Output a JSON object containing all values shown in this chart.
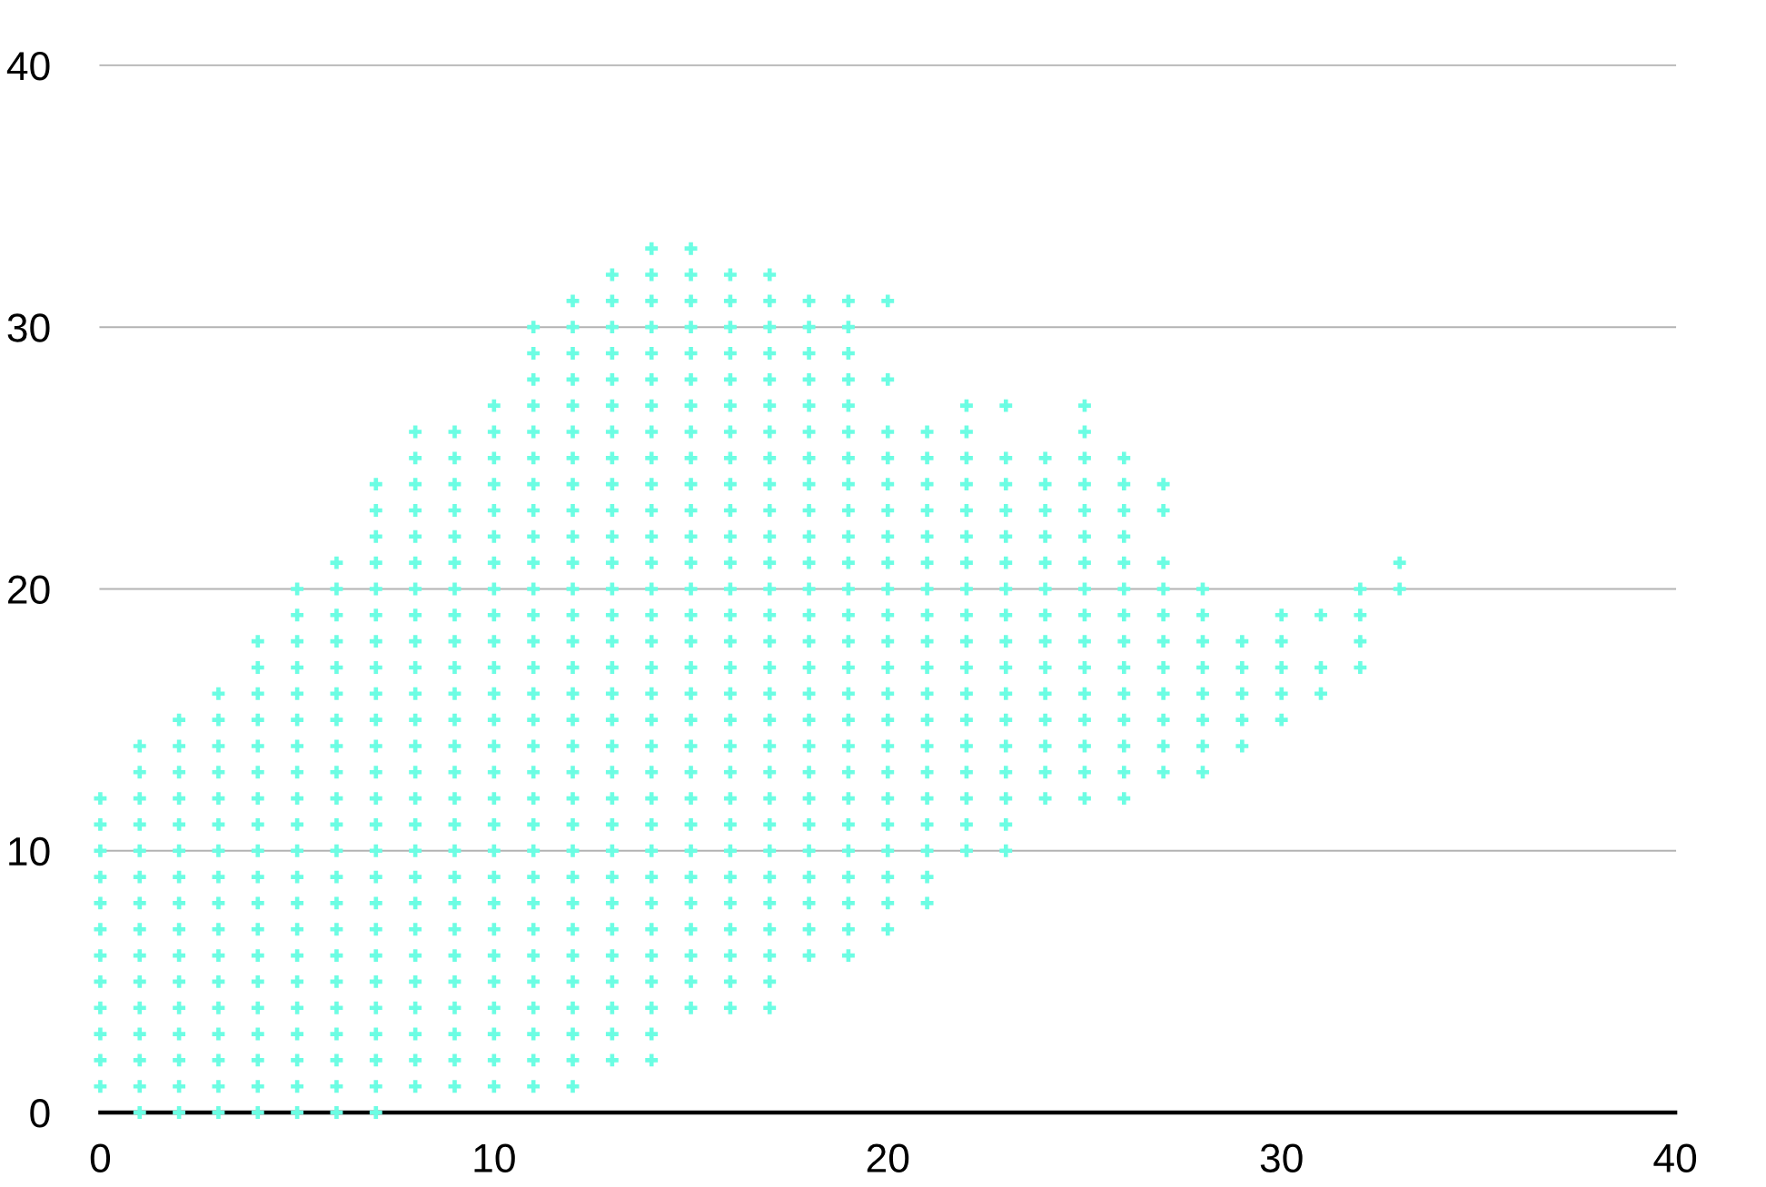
{
  "chart_data": {
    "type": "scatter",
    "color": "#6cfde3",
    "marker": "cross",
    "xlim": [
      0,
      40
    ],
    "ylim": [
      0,
      40
    ],
    "xticks": [
      0,
      10,
      20,
      30,
      40
    ],
    "yticks": [
      0,
      10,
      20,
      30,
      40
    ],
    "grid": "y",
    "x": [
      0,
      0,
      0,
      0,
      0,
      0,
      0,
      0,
      0,
      0,
      0,
      0,
      1,
      1,
      1,
      1,
      1,
      1,
      1,
      1,
      1,
      1,
      1,
      1,
      1,
      1,
      1,
      2,
      2,
      2,
      2,
      2,
      2,
      2,
      2,
      2,
      2,
      2,
      2,
      2,
      2,
      2,
      2,
      3,
      3,
      3,
      3,
      3,
      3,
      3,
      3,
      3,
      3,
      3,
      3,
      3,
      3,
      3,
      3,
      3,
      4,
      4,
      4,
      4,
      4,
      4,
      4,
      4,
      4,
      4,
      4,
      4,
      4,
      4,
      4,
      4,
      4,
      4,
      4,
      5,
      5,
      5,
      5,
      5,
      5,
      5,
      5,
      5,
      5,
      5,
      5,
      5,
      5,
      5,
      5,
      5,
      5,
      5,
      5,
      5,
      6,
      6,
      6,
      6,
      6,
      6,
      6,
      6,
      6,
      6,
      6,
      6,
      6,
      6,
      6,
      6,
      6,
      6,
      6,
      6,
      6,
      6,
      7,
      7,
      7,
      7,
      7,
      7,
      7,
      7,
      7,
      7,
      7,
      7,
      7,
      7,
      7,
      7,
      7,
      7,
      7,
      7,
      7,
      7,
      7,
      7,
      7,
      8,
      8,
      8,
      8,
      8,
      8,
      8,
      8,
      8,
      8,
      8,
      8,
      8,
      8,
      8,
      8,
      8,
      8,
      8,
      8,
      8,
      8,
      8,
      8,
      8,
      8,
      9,
      9,
      9,
      9,
      9,
      9,
      9,
      9,
      9,
      9,
      9,
      9,
      9,
      9,
      9,
      9,
      9,
      9,
      9,
      9,
      9,
      9,
      9,
      9,
      9,
      9,
      10,
      10,
      10,
      10,
      10,
      10,
      10,
      10,
      10,
      10,
      10,
      10,
      10,
      10,
      10,
      10,
      10,
      10,
      10,
      10,
      10,
      10,
      10,
      10,
      10,
      10,
      10,
      11,
      11,
      11,
      11,
      11,
      11,
      11,
      11,
      11,
      11,
      11,
      11,
      11,
      11,
      11,
      11,
      11,
      11,
      11,
      11,
      11,
      11,
      11,
      11,
      11,
      11,
      11,
      11,
      11,
      11,
      12,
      12,
      12,
      12,
      12,
      12,
      12,
      12,
      12,
      12,
      12,
      12,
      12,
      12,
      12,
      12,
      12,
      12,
      12,
      12,
      12,
      12,
      12,
      12,
      12,
      12,
      12,
      12,
      12,
      12,
      12,
      13,
      13,
      13,
      13,
      13,
      13,
      13,
      13,
      13,
      13,
      13,
      13,
      13,
      13,
      13,
      13,
      13,
      13,
      13,
      13,
      13,
      13,
      13,
      13,
      13,
      13,
      13,
      13,
      13,
      13,
      13,
      14,
      14,
      14,
      14,
      14,
      14,
      14,
      14,
      14,
      14,
      14,
      14,
      14,
      14,
      14,
      14,
      14,
      14,
      14,
      14,
      14,
      14,
      14,
      14,
      14,
      14,
      14,
      14,
      14,
      14,
      14,
      14,
      15,
      15,
      15,
      15,
      15,
      15,
      15,
      15,
      15,
      15,
      15,
      15,
      15,
      15,
      15,
      15,
      15,
      15,
      15,
      15,
      15,
      15,
      15,
      15,
      15,
      15,
      15,
      15,
      15,
      15,
      16,
      16,
      16,
      16,
      16,
      16,
      16,
      16,
      16,
      16,
      16,
      16,
      16,
      16,
      16,
      16,
      16,
      16,
      16,
      16,
      16,
      16,
      16,
      16,
      16,
      16,
      16,
      16,
      16,
      17,
      17,
      17,
      17,
      17,
      17,
      17,
      17,
      17,
      17,
      17,
      17,
      17,
      17,
      17,
      17,
      17,
      17,
      17,
      17,
      17,
      17,
      17,
      17,
      17,
      17,
      17,
      17,
      17,
      18,
      18,
      18,
      18,
      18,
      18,
      18,
      18,
      18,
      18,
      18,
      18,
      18,
      18,
      18,
      18,
      18,
      18,
      18,
      18,
      18,
      18,
      18,
      18,
      18,
      18,
      19,
      19,
      19,
      19,
      19,
      19,
      19,
      19,
      19,
      19,
      19,
      19,
      19,
      19,
      19,
      19,
      19,
      19,
      19,
      19,
      19,
      19,
      19,
      19,
      19,
      19,
      20,
      20,
      20,
      20,
      20,
      20,
      20,
      20,
      20,
      20,
      20,
      20,
      20,
      20,
      20,
      20,
      20,
      20,
      20,
      20,
      20,
      20,
      21,
      21,
      21,
      21,
      21,
      21,
      21,
      21,
      21,
      21,
      21,
      21,
      21,
      21,
      21,
      21,
      21,
      21,
      21,
      22,
      22,
      22,
      22,
      22,
      22,
      22,
      22,
      22,
      22,
      22,
      22,
      22,
      22,
      22,
      22,
      22,
      22,
      23,
      23,
      23,
      23,
      23,
      23,
      23,
      23,
      23,
      23,
      23,
      23,
      23,
      23,
      23,
      23,
      23,
      24,
      24,
      24,
      24,
      24,
      24,
      24,
      24,
      24,
      24,
      24,
      24,
      24,
      24,
      25,
      25,
      25,
      25,
      25,
      25,
      25,
      25,
      25,
      25,
      25,
      25,
      25,
      25,
      25,
      25,
      26,
      26,
      26,
      26,
      26,
      26,
      26,
      26,
      26,
      26,
      26,
      26,
      26,
      26,
      27,
      27,
      27,
      27,
      27,
      27,
      27,
      27,
      27,
      27,
      27,
      28,
      28,
      28,
      28,
      28,
      28,
      28,
      28,
      29,
      29,
      29,
      29,
      29,
      30,
      30,
      30,
      30,
      30,
      31,
      31,
      31,
      32,
      32,
      32,
      32,
      33,
      33
    ],
    "values": [
      1,
      2,
      3,
      4,
      5,
      6,
      7,
      8,
      9,
      10,
      11,
      12,
      0,
      1,
      2,
      3,
      4,
      5,
      6,
      7,
      8,
      9,
      10,
      11,
      12,
      13,
      14,
      0,
      1,
      2,
      3,
      4,
      5,
      6,
      7,
      8,
      9,
      10,
      11,
      12,
      13,
      14,
      15,
      0,
      1,
      2,
      3,
      4,
      5,
      6,
      7,
      8,
      9,
      10,
      11,
      12,
      13,
      14,
      15,
      16,
      0,
      1,
      2,
      3,
      4,
      5,
      6,
      7,
      8,
      9,
      10,
      11,
      12,
      13,
      14,
      15,
      16,
      17,
      18,
      0,
      1,
      2,
      3,
      4,
      5,
      6,
      7,
      8,
      9,
      10,
      11,
      12,
      13,
      14,
      15,
      16,
      17,
      18,
      19,
      20,
      0,
      1,
      2,
      3,
      4,
      5,
      6,
      7,
      8,
      9,
      10,
      11,
      12,
      13,
      14,
      15,
      16,
      17,
      18,
      19,
      20,
      21,
      0,
      1,
      2,
      3,
      4,
      5,
      6,
      7,
      8,
      9,
      10,
      11,
      12,
      13,
      14,
      15,
      16,
      17,
      18,
      19,
      20,
      21,
      22,
      23,
      24,
      1,
      2,
      3,
      4,
      5,
      6,
      7,
      8,
      9,
      10,
      11,
      12,
      13,
      14,
      15,
      16,
      17,
      18,
      19,
      20,
      21,
      22,
      23,
      24,
      25,
      26,
      1,
      2,
      3,
      4,
      5,
      6,
      7,
      8,
      9,
      10,
      11,
      12,
      13,
      14,
      15,
      16,
      17,
      18,
      19,
      20,
      21,
      22,
      23,
      24,
      25,
      26,
      1,
      2,
      3,
      4,
      5,
      6,
      7,
      8,
      9,
      10,
      11,
      12,
      13,
      14,
      15,
      16,
      17,
      18,
      19,
      20,
      21,
      22,
      23,
      24,
      25,
      26,
      27,
      1,
      2,
      3,
      4,
      5,
      6,
      7,
      8,
      9,
      10,
      11,
      12,
      13,
      14,
      15,
      16,
      17,
      18,
      19,
      20,
      21,
      22,
      23,
      24,
      25,
      26,
      27,
      28,
      29,
      30,
      1,
      2,
      3,
      4,
      5,
      6,
      7,
      8,
      9,
      10,
      11,
      12,
      13,
      14,
      15,
      16,
      17,
      18,
      19,
      20,
      21,
      22,
      23,
      24,
      25,
      26,
      27,
      28,
      29,
      30,
      31,
      2,
      3,
      4,
      5,
      6,
      7,
      8,
      9,
      10,
      11,
      12,
      13,
      14,
      15,
      16,
      17,
      18,
      19,
      20,
      21,
      22,
      23,
      24,
      25,
      26,
      27,
      28,
      29,
      30,
      31,
      32,
      2,
      3,
      4,
      5,
      6,
      7,
      8,
      9,
      10,
      11,
      12,
      13,
      14,
      15,
      16,
      17,
      18,
      19,
      20,
      21,
      22,
      23,
      24,
      25,
      26,
      27,
      28,
      29,
      30,
      31,
      32,
      33,
      4,
      5,
      6,
      7,
      8,
      9,
      10,
      11,
      12,
      13,
      14,
      15,
      16,
      17,
      18,
      19,
      20,
      21,
      22,
      23,
      24,
      25,
      26,
      27,
      28,
      29,
      30,
      31,
      32,
      33,
      4,
      5,
      6,
      7,
      8,
      9,
      10,
      11,
      12,
      13,
      14,
      15,
      16,
      17,
      18,
      19,
      20,
      21,
      22,
      23,
      24,
      25,
      26,
      27,
      28,
      29,
      30,
      31,
      32,
      4,
      5,
      6,
      7,
      8,
      9,
      10,
      11,
      12,
      13,
      14,
      15,
      16,
      17,
      18,
      19,
      20,
      21,
      22,
      23,
      24,
      25,
      26,
      27,
      28,
      29,
      30,
      31,
      32,
      6,
      7,
      8,
      9,
      10,
      11,
      12,
      13,
      14,
      15,
      16,
      17,
      18,
      19,
      20,
      21,
      22,
      23,
      24,
      25,
      26,
      27,
      28,
      29,
      30,
      31,
      6,
      7,
      8,
      9,
      10,
      11,
      12,
      13,
      14,
      15,
      16,
      17,
      18,
      19,
      20,
      21,
      22,
      23,
      24,
      25,
      26,
      27,
      28,
      29,
      30,
      31,
      7,
      8,
      9,
      10,
      11,
      12,
      13,
      14,
      15,
      16,
      17,
      18,
      19,
      20,
      21,
      22,
      23,
      24,
      25,
      26,
      28,
      31,
      8,
      9,
      10,
      11,
      12,
      13,
      14,
      15,
      16,
      17,
      18,
      19,
      20,
      21,
      22,
      23,
      24,
      25,
      26,
      10,
      11,
      12,
      13,
      14,
      15,
      16,
      17,
      18,
      19,
      20,
      21,
      22,
      23,
      24,
      25,
      26,
      27,
      10,
      11,
      12,
      13,
      14,
      15,
      16,
      17,
      18,
      19,
      20,
      21,
      22,
      23,
      24,
      25,
      27,
      12,
      13,
      14,
      15,
      16,
      17,
      18,
      19,
      20,
      21,
      22,
      23,
      24,
      25,
      12,
      13,
      14,
      15,
      16,
      17,
      18,
      19,
      20,
      21,
      22,
      23,
      24,
      25,
      26,
      27,
      12,
      13,
      14,
      15,
      16,
      17,
      18,
      19,
      20,
      21,
      22,
      23,
      24,
      25,
      13,
      14,
      15,
      16,
      17,
      18,
      19,
      20,
      21,
      23,
      24,
      13,
      14,
      15,
      16,
      17,
      18,
      19,
      20,
      14,
      15,
      16,
      17,
      18,
      15,
      16,
      17,
      18,
      19,
      16,
      17,
      19,
      17,
      18,
      19,
      20,
      20,
      21
    ]
  }
}
